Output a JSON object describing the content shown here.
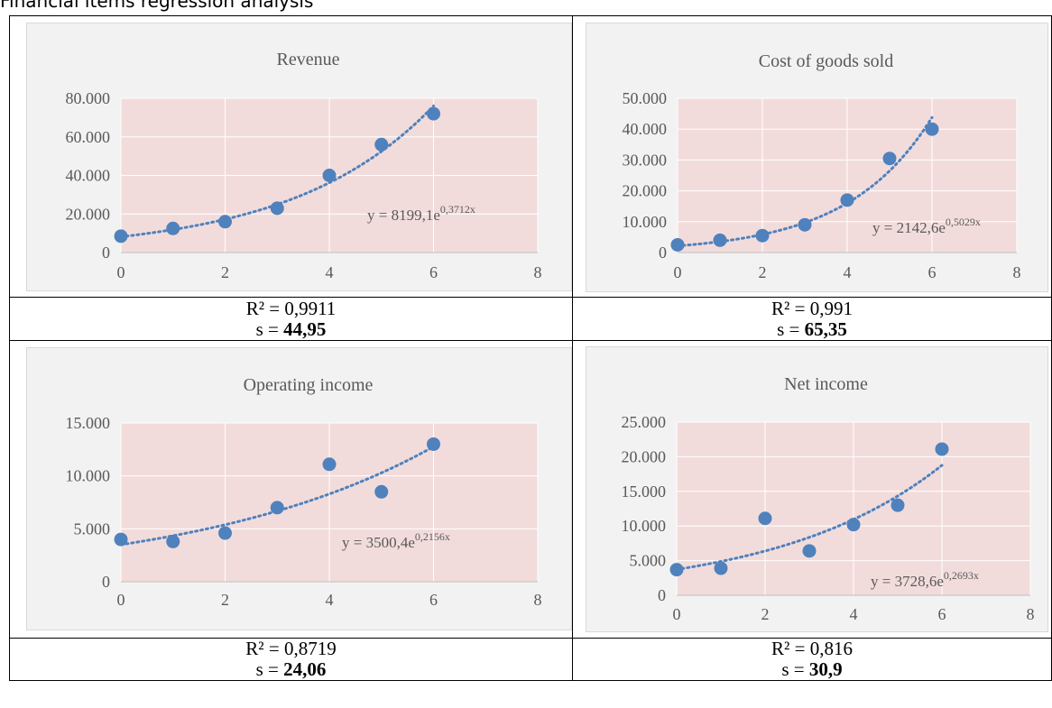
{
  "caption": "Financial items regression analysis",
  "colors": {
    "plot_bg": "#f2dcdb",
    "frame_bg": "#f2f2f2",
    "marker": "#4f81bd",
    "grid": "#ffffff",
    "text": "#595959"
  },
  "chart_data": [
    {
      "type": "scatter",
      "title": "Revenue",
      "x": [
        0,
        1,
        2,
        3,
        4,
        5,
        6
      ],
      "y": [
        8500,
        12500,
        16000,
        23000,
        40000,
        56000,
        72000
      ],
      "xlim": [
        0,
        8
      ],
      "ylim": [
        0,
        80000
      ],
      "xticks": [
        "0",
        "2",
        "4",
        "6",
        "8"
      ],
      "yticks": [
        "0",
        "20.000",
        "40.000",
        "60.000",
        "80.000"
      ],
      "trend": {
        "a": 8199.1,
        "b": 0.3712,
        "label": "y = 8199,1e",
        "exp": "0,3712x"
      },
      "grid": true,
      "legend": "none"
    },
    {
      "type": "scatter",
      "title": "Cost of goods sold",
      "x": [
        0,
        1,
        2,
        3,
        4,
        5,
        6
      ],
      "y": [
        2500,
        4000,
        5500,
        9000,
        17000,
        30500,
        40000
      ],
      "xlim": [
        0,
        8
      ],
      "ylim": [
        0,
        50000
      ],
      "xticks": [
        "0",
        "2",
        "4",
        "6",
        "8"
      ],
      "yticks": [
        "0",
        "10.000",
        "20.000",
        "30.000",
        "40.000",
        "50.000"
      ],
      "trend": {
        "a": 2142.6,
        "b": 0.5029,
        "label": "y = 2142,6e",
        "exp": "0,5029x"
      },
      "grid": true,
      "legend": "none"
    },
    {
      "type": "scatter",
      "title": "Operating income",
      "x": [
        0,
        1,
        2,
        3,
        4,
        5,
        6
      ],
      "y": [
        4000,
        3800,
        4600,
        7000,
        11100,
        8500,
        13000
      ],
      "xlim": [
        0,
        8
      ],
      "ylim": [
        0,
        15000
      ],
      "xticks": [
        "0",
        "2",
        "4",
        "6",
        "8"
      ],
      "yticks": [
        "0",
        "5.000",
        "10.000",
        "15.000"
      ],
      "trend": {
        "a": 3500.4,
        "b": 0.2156,
        "label": "y = 3500,4e",
        "exp": "0,2156x"
      },
      "grid": true,
      "legend": "none"
    },
    {
      "type": "scatter",
      "title": "Net income",
      "x": [
        0,
        1,
        2,
        3,
        4,
        5,
        6
      ],
      "y": [
        3700,
        3900,
        11100,
        6400,
        10200,
        13000,
        21100
      ],
      "xlim": [
        0,
        8
      ],
      "ylim": [
        0,
        25000
      ],
      "xticks": [
        "0",
        "2",
        "4",
        "6",
        "8"
      ],
      "yticks": [
        "0",
        "5.000",
        "10.000",
        "15.000",
        "20.000",
        "25.000"
      ],
      "trend": {
        "a": 3728.6,
        "b": 0.2693,
        "label": "y = 3728,6e",
        "exp": "0,2693x"
      },
      "grid": true,
      "legend": "none"
    }
  ],
  "stats": [
    {
      "r2": "R² = 0,9911",
      "s_label": "s = ",
      "s_value": "44,95"
    },
    {
      "r2": "R² = 0,991",
      "s_label": "s = ",
      "s_value": "65,35"
    },
    {
      "r2": "R² = 0,8719",
      "s_label": "s = ",
      "s_value": "24,06"
    },
    {
      "r2": "R² = 0,816",
      "s_label": "s = ",
      "s_value": "30,9"
    }
  ]
}
